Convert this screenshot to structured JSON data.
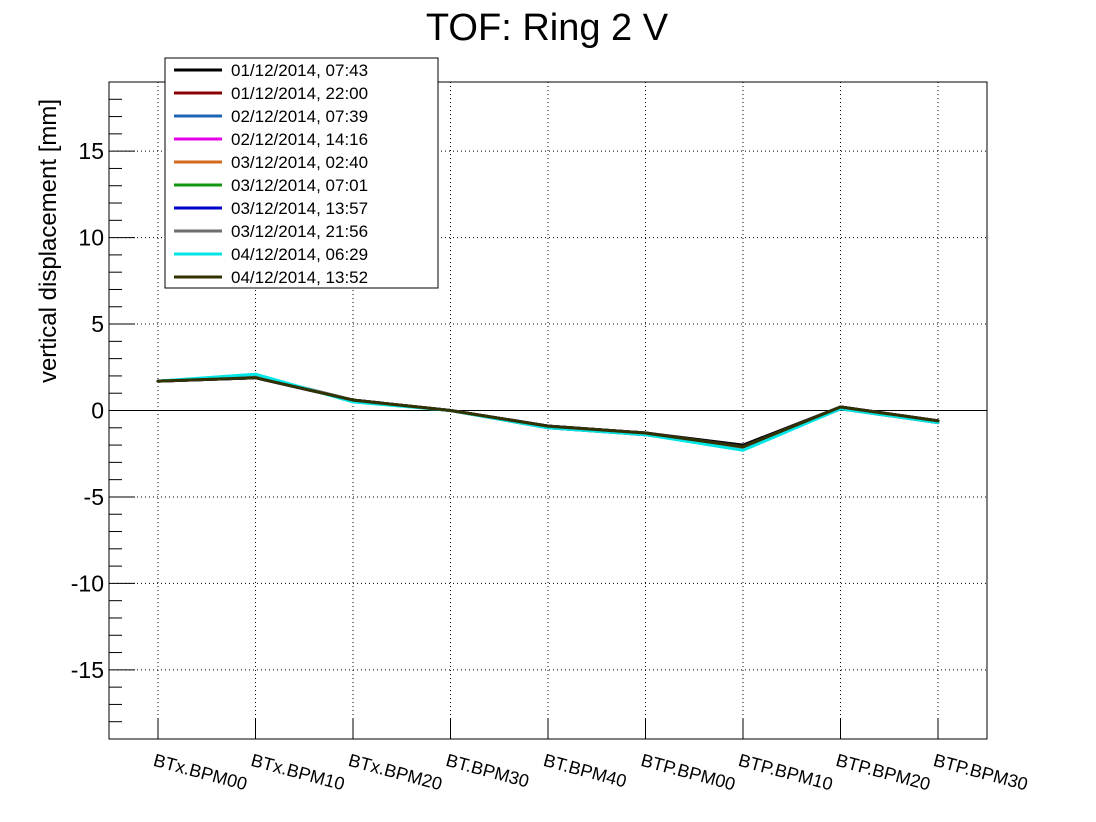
{
  "chart_data": {
    "type": "line",
    "title": "TOF: Ring 2 V",
    "xlabel": "",
    "ylabel": "vertical displacement [mm]",
    "ylim": [
      -19,
      19
    ],
    "yticks": [
      -15,
      -10,
      -5,
      0,
      5,
      10,
      15
    ],
    "ytick_labels": [
      "-15",
      "-10",
      "-5",
      "0",
      "5",
      "10",
      "15"
    ],
    "grid": true,
    "zero_line": true,
    "legend_position": "top-left",
    "categories": [
      "BTx.BPM00",
      "BTx.BPM10",
      "BTx.BPM20",
      "BT.BPM30",
      "BT.BPM40",
      "BTP.BPM00",
      "BTP.BPM10",
      "BTP.BPM20",
      "BTP.BPM30"
    ],
    "series": [
      {
        "name": "01/12/2014, 07:43",
        "color": "#000000",
        "values": [
          1.7,
          1.9,
          0.6,
          0.0,
          -0.9,
          -1.3,
          -2.0,
          0.2,
          -0.6
        ]
      },
      {
        "name": "01/12/2014, 22:00",
        "color": "#8b0000",
        "values": [
          1.7,
          1.9,
          0.6,
          0.0,
          -0.9,
          -1.3,
          -2.1,
          0.2,
          -0.6
        ]
      },
      {
        "name": "02/12/2014, 07:39",
        "color": "#1e64b4",
        "values": [
          1.7,
          2.0,
          0.6,
          0.0,
          -1.0,
          -1.4,
          -2.2,
          0.1,
          -0.7
        ]
      },
      {
        "name": "02/12/2014, 14:16",
        "color": "#e600e6",
        "values": [
          1.7,
          1.9,
          0.6,
          0.0,
          -0.9,
          -1.3,
          -2.1,
          0.2,
          -0.6
        ]
      },
      {
        "name": "03/12/2014, 02:40",
        "color": "#d2691e",
        "values": [
          1.7,
          1.9,
          0.6,
          0.0,
          -0.9,
          -1.3,
          -2.1,
          0.2,
          -0.6
        ]
      },
      {
        "name": "03/12/2014, 07:01",
        "color": "#129612",
        "values": [
          1.7,
          1.9,
          0.6,
          0.0,
          -0.9,
          -1.3,
          -2.1,
          0.2,
          -0.6
        ]
      },
      {
        "name": "03/12/2014, 13:57",
        "color": "#0000c8",
        "values": [
          1.7,
          1.9,
          0.6,
          0.0,
          -0.9,
          -1.3,
          -2.1,
          0.2,
          -0.6
        ]
      },
      {
        "name": "03/12/2014, 21:56",
        "color": "#6e6e6e",
        "values": [
          1.7,
          2.0,
          0.6,
          0.0,
          -1.0,
          -1.4,
          -2.2,
          0.1,
          -0.7
        ]
      },
      {
        "name": "04/12/2014, 06:29",
        "color": "#00e6e6",
        "values": [
          1.7,
          2.1,
          0.5,
          0.0,
          -1.0,
          -1.4,
          -2.3,
          0.1,
          -0.7
        ]
      },
      {
        "name": "04/12/2014, 13:52",
        "color": "#323200",
        "values": [
          1.7,
          1.9,
          0.6,
          0.0,
          -0.9,
          -1.3,
          -2.1,
          0.2,
          -0.6
        ]
      }
    ]
  }
}
